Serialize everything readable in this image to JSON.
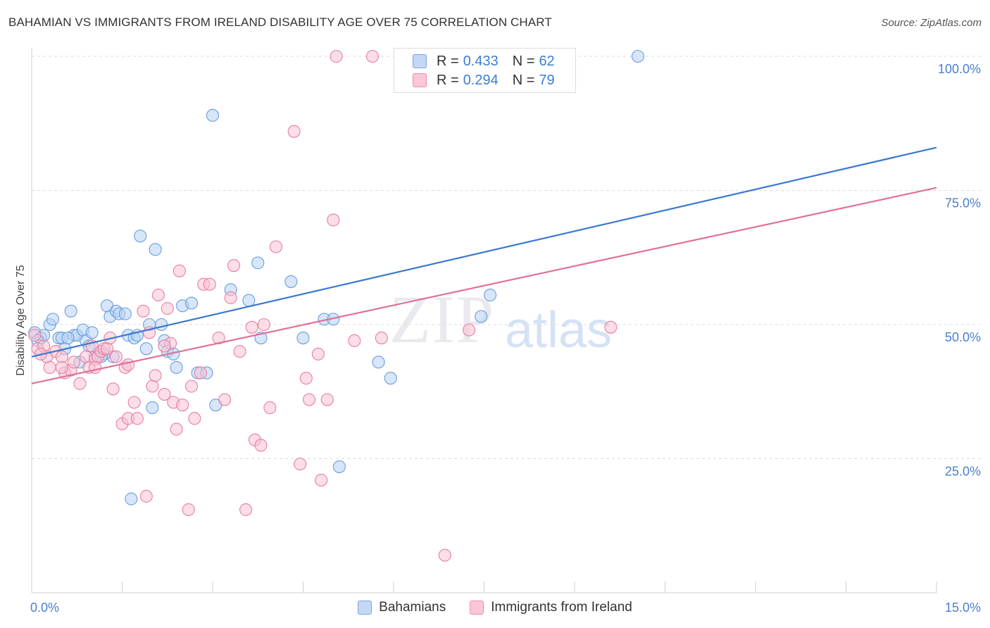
{
  "header": {
    "title": "BAHAMIAN VS IMMIGRANTS FROM IRELAND DISABILITY AGE OVER 75 CORRELATION CHART",
    "source": "Source: ZipAtlas.com"
  },
  "watermark": {
    "zip": "ZIP",
    "atlas": "atlas"
  },
  "legend": {
    "rows": [
      {
        "r_label": "R =",
        "r_value": "0.433",
        "n_label": "N =",
        "n_value": "62",
        "color": "#9ec2ee"
      },
      {
        "r_label": "R =",
        "r_value": "0.294",
        "n_label": "N =",
        "n_value": "79",
        "color": "#f5b3c8"
      }
    ]
  },
  "bottom_legend": {
    "series1": "Bahamians",
    "series2": "Immigrants from Ireland"
  },
  "chart_data": {
    "type": "scatter",
    "ylabel": "Disability Age Over 75",
    "xlim": [
      0,
      15
    ],
    "ylim": [
      0,
      100
    ],
    "x_ticks": [
      "0.0%",
      "15.0%"
    ],
    "y_ticks": [
      {
        "value": 25,
        "label": "25.0%"
      },
      {
        "value": 50,
        "label": "50.0%"
      },
      {
        "value": 75,
        "label": "75.0%"
      },
      {
        "value": 100,
        "label": "100.0%"
      }
    ],
    "grid": true,
    "series": [
      {
        "name": "Bahamians",
        "color": "#6a9edc",
        "fill": "#b7d1f3",
        "trend": [
          [
            0,
            44.0
          ],
          [
            15,
            83.0
          ]
        ],
        "points": [
          [
            0.05,
            48.5
          ],
          [
            0.15,
            47.5
          ],
          [
            0.2,
            48
          ],
          [
            0.3,
            50
          ],
          [
            0.35,
            51
          ],
          [
            0.45,
            47.5
          ],
          [
            0.5,
            47.5
          ],
          [
            0.55,
            45.5
          ],
          [
            0.65,
            52.5
          ],
          [
            0.7,
            48
          ],
          [
            0.75,
            48
          ],
          [
            0.8,
            43
          ],
          [
            0.85,
            49
          ],
          [
            0.9,
            47
          ],
          [
            0.95,
            46
          ],
          [
            1.0,
            48.5
          ],
          [
            1.05,
            44
          ],
          [
            1.15,
            45
          ],
          [
            1.25,
            53.5
          ],
          [
            1.3,
            51.5
          ],
          [
            1.35,
            44
          ],
          [
            1.4,
            52.5
          ],
          [
            1.45,
            52
          ],
          [
            1.55,
            52
          ],
          [
            1.6,
            48
          ],
          [
            1.65,
            17.5
          ],
          [
            1.7,
            47.5
          ],
          [
            1.75,
            48
          ],
          [
            1.8,
            66.5
          ],
          [
            1.9,
            45.5
          ],
          [
            1.95,
            50
          ],
          [
            2.0,
            34.5
          ],
          [
            2.05,
            64
          ],
          [
            2.15,
            50
          ],
          [
            2.25,
            45
          ],
          [
            2.35,
            44.5
          ],
          [
            2.4,
            42
          ],
          [
            2.5,
            53.5
          ],
          [
            2.65,
            54
          ],
          [
            2.75,
            41
          ],
          [
            2.9,
            41
          ],
          [
            3.0,
            89
          ],
          [
            3.05,
            35
          ],
          [
            3.3,
            56.5
          ],
          [
            3.6,
            54.5
          ],
          [
            3.75,
            61.5
          ],
          [
            3.8,
            47.5
          ],
          [
            4.3,
            58
          ],
          [
            4.5,
            47.5
          ],
          [
            4.85,
            51
          ],
          [
            5.0,
            51
          ],
          [
            5.1,
            23.5
          ],
          [
            5.75,
            43
          ],
          [
            5.95,
            40
          ],
          [
            7.45,
            51.5
          ],
          [
            7.6,
            55.5
          ],
          [
            10.05,
            100
          ],
          [
            0.1,
            47
          ],
          [
            1.2,
            44.5
          ],
          [
            0.6,
            47.5
          ],
          [
            2.2,
            47
          ],
          [
            1.15,
            44
          ]
        ]
      },
      {
        "name": "Immigrants from Ireland",
        "color": "#e97ea0",
        "fill": "#f7c2d3",
        "trend": [
          [
            0,
            39.0
          ],
          [
            15,
            75.5
          ]
        ],
        "points": [
          [
            0.05,
            48
          ],
          [
            0.1,
            45.5
          ],
          [
            0.2,
            46
          ],
          [
            0.25,
            44
          ],
          [
            0.3,
            42
          ],
          [
            0.4,
            45
          ],
          [
            0.5,
            44
          ],
          [
            0.55,
            41
          ],
          [
            0.65,
            41.5
          ],
          [
            0.7,
            43
          ],
          [
            0.8,
            39
          ],
          [
            0.9,
            44
          ],
          [
            0.95,
            42
          ],
          [
            1.0,
            46
          ],
          [
            1.05,
            43.5
          ],
          [
            1.1,
            44
          ],
          [
            1.15,
            45
          ],
          [
            1.2,
            45.5
          ],
          [
            1.25,
            45.5
          ],
          [
            1.3,
            47.5
          ],
          [
            1.35,
            38
          ],
          [
            1.4,
            44
          ],
          [
            1.5,
            31.5
          ],
          [
            1.55,
            42
          ],
          [
            1.6,
            32.5
          ],
          [
            1.7,
            35.5
          ],
          [
            1.75,
            32.5
          ],
          [
            1.85,
            52.5
          ],
          [
            1.9,
            18
          ],
          [
            1.95,
            48.5
          ],
          [
            2.0,
            38.5
          ],
          [
            2.05,
            40.5
          ],
          [
            2.1,
            55.5
          ],
          [
            2.2,
            37
          ],
          [
            2.25,
            53
          ],
          [
            2.3,
            46.5
          ],
          [
            2.35,
            35.5
          ],
          [
            2.4,
            30.5
          ],
          [
            2.45,
            60
          ],
          [
            2.5,
            35
          ],
          [
            2.6,
            15.5
          ],
          [
            2.65,
            38.5
          ],
          [
            2.7,
            32.5
          ],
          [
            2.8,
            41
          ],
          [
            2.85,
            57.5
          ],
          [
            2.95,
            57.5
          ],
          [
            3.1,
            47.5
          ],
          [
            3.2,
            36
          ],
          [
            3.3,
            55
          ],
          [
            3.35,
            61
          ],
          [
            3.45,
            45
          ],
          [
            3.55,
            15.5
          ],
          [
            3.65,
            49.5
          ],
          [
            3.7,
            28.5
          ],
          [
            3.8,
            27.5
          ],
          [
            3.85,
            50
          ],
          [
            3.95,
            34.5
          ],
          [
            4.05,
            64.5
          ],
          [
            4.35,
            86
          ],
          [
            4.45,
            24
          ],
          [
            4.55,
            40
          ],
          [
            4.6,
            36
          ],
          [
            4.75,
            44.5
          ],
          [
            4.8,
            21
          ],
          [
            4.9,
            36
          ],
          [
            5.0,
            69.5
          ],
          [
            5.05,
            100
          ],
          [
            5.35,
            47
          ],
          [
            5.65,
            100
          ],
          [
            5.8,
            47.5
          ],
          [
            6.85,
            7
          ],
          [
            7.25,
            49
          ],
          [
            8.25,
            100
          ],
          [
            9.6,
            49.5
          ],
          [
            0.15,
            44.5
          ],
          [
            1.6,
            42.5
          ],
          [
            2.2,
            46
          ],
          [
            1.05,
            42
          ],
          [
            0.5,
            42
          ]
        ]
      }
    ]
  }
}
